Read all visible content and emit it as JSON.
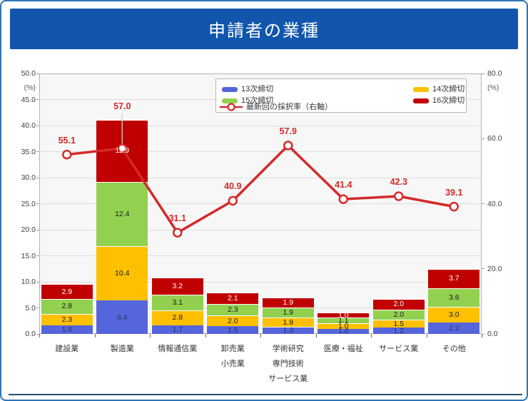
{
  "page": {
    "title": "申請者の業種"
  },
  "chart_data": {
    "type": "bar",
    "subtype": "stacked-bar-with-line-overlay",
    "categories": [
      [
        "建設業"
      ],
      [
        "製造業"
      ],
      [
        "情報通信業"
      ],
      [
        "卸売業",
        "小売業"
      ],
      [
        "学術研究",
        "専門技術",
        "サービス業"
      ],
      [
        "医療・福祉"
      ],
      [
        "サービス業"
      ],
      [
        "その他"
      ]
    ],
    "series": [
      {
        "name": "13次締切",
        "color": "#5565dc",
        "label_color": "#2a3560",
        "values": [
          1.6,
          6.4,
          1.7,
          1.5,
          1.3,
          1.0,
          1.2,
          2.2
        ]
      },
      {
        "name": "14次締切",
        "color": "#ffc000",
        "label_color": "#1a1a1a",
        "values": [
          2.3,
          10.4,
          2.8,
          2.0,
          1.9,
          1.0,
          1.5,
          3.0
        ]
      },
      {
        "name": "15次締切",
        "color": "#92d050",
        "label_color": "#1a1a1a",
        "values": [
          2.8,
          12.4,
          3.1,
          2.3,
          1.9,
          1.1,
          2.0,
          3.6
        ]
      },
      {
        "name": "16次締切",
        "color": "#c00000",
        "label_color": "#ffffff",
        "values": [
          2.9,
          11.9,
          3.2,
          2.1,
          1.9,
          1.0,
          2.0,
          3.7
        ]
      }
    ],
    "line": {
      "name": "最新回の採択率（右軸）",
      "color": "#d42a2a",
      "marker": "open-circle",
      "values": [
        55.1,
        57.0,
        31.1,
        40.9,
        57.9,
        41.4,
        42.3,
        39.1
      ]
    },
    "left_axis": {
      "label": "(%)",
      "min": 0,
      "max": 50,
      "step": 5,
      "tick_format": "0.0"
    },
    "right_axis": {
      "label": "(%)",
      "min": 0,
      "max": 80,
      "step": 20,
      "tick_format": "0.0"
    },
    "grid": true,
    "legend_position": "top-inside"
  }
}
